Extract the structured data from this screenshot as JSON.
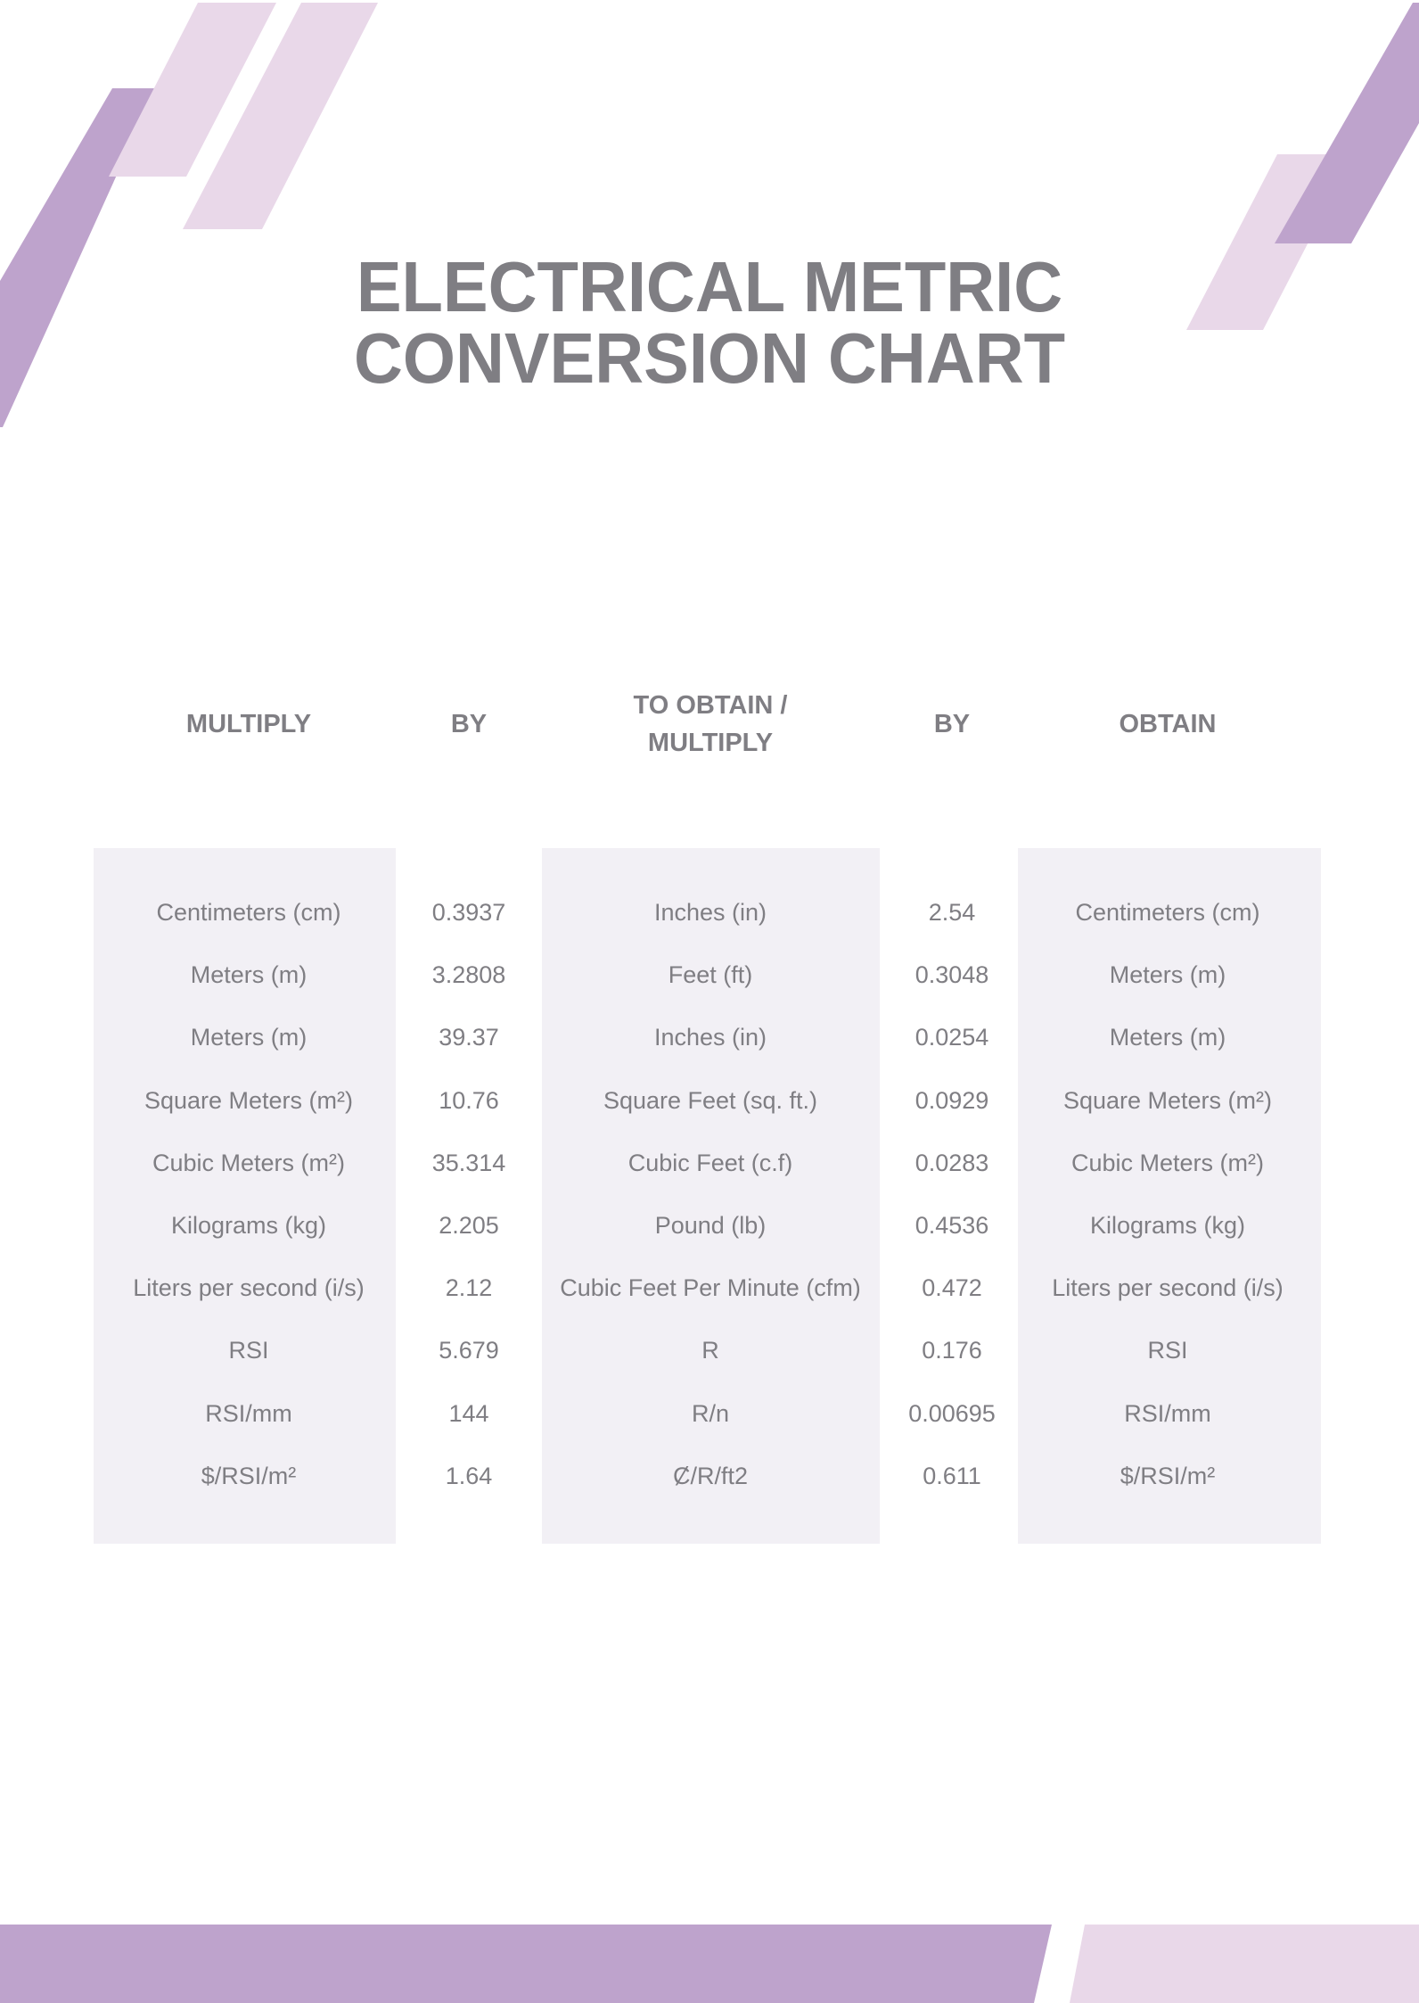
{
  "title": {
    "line1": "ELECTRICAL METRIC",
    "line2": "CONVERSION CHART"
  },
  "colors": {
    "accent_dark": "#bea3cc",
    "accent_light": "#e9d8e9",
    "text": "#7f7e83",
    "table_fill": "#f2f0f5"
  },
  "headers": [
    "MULTIPLY",
    "BY",
    "TO OBTAIN / MULTIPLY",
    "BY",
    "OBTAIN"
  ],
  "rows": [
    [
      "Centimeters (cm)",
      "0.3937",
      "Inches (in)",
      "2.54",
      "Centimeters (cm)"
    ],
    [
      "Meters (m)",
      "3.2808",
      "Feet (ft)",
      "0.3048",
      "Meters (m)"
    ],
    [
      "Meters (m)",
      "39.37",
      "Inches (in)",
      "0.0254",
      "Meters (m)"
    ],
    [
      "Square Meters (m²)",
      "10.76",
      "Square Feet (sq. ft.)",
      "0.0929",
      "Square Meters (m²)"
    ],
    [
      "Cubic Meters (m²)",
      "35.314",
      "Cubic Feet (c.f)",
      "0.0283",
      "Cubic Meters (m²)"
    ],
    [
      "Kilograms (kg)",
      "2.205",
      "Pound (lb)",
      "0.4536",
      "Kilograms (kg)"
    ],
    [
      "Liters per second (i/s)",
      "2.12",
      "Cubic Feet Per Minute (cfm)",
      "0.472",
      "Liters per second (i/s)"
    ],
    [
      "RSI",
      "5.679",
      "R",
      "0.176",
      "RSI"
    ],
    [
      "RSI/mm",
      "144",
      "R/n",
      "0.00695",
      "RSI/mm"
    ],
    [
      "$/RSI/m²",
      "1.64",
      "Ȼ/R/ft2",
      "0.611",
      "$/RSI/m²"
    ]
  ]
}
